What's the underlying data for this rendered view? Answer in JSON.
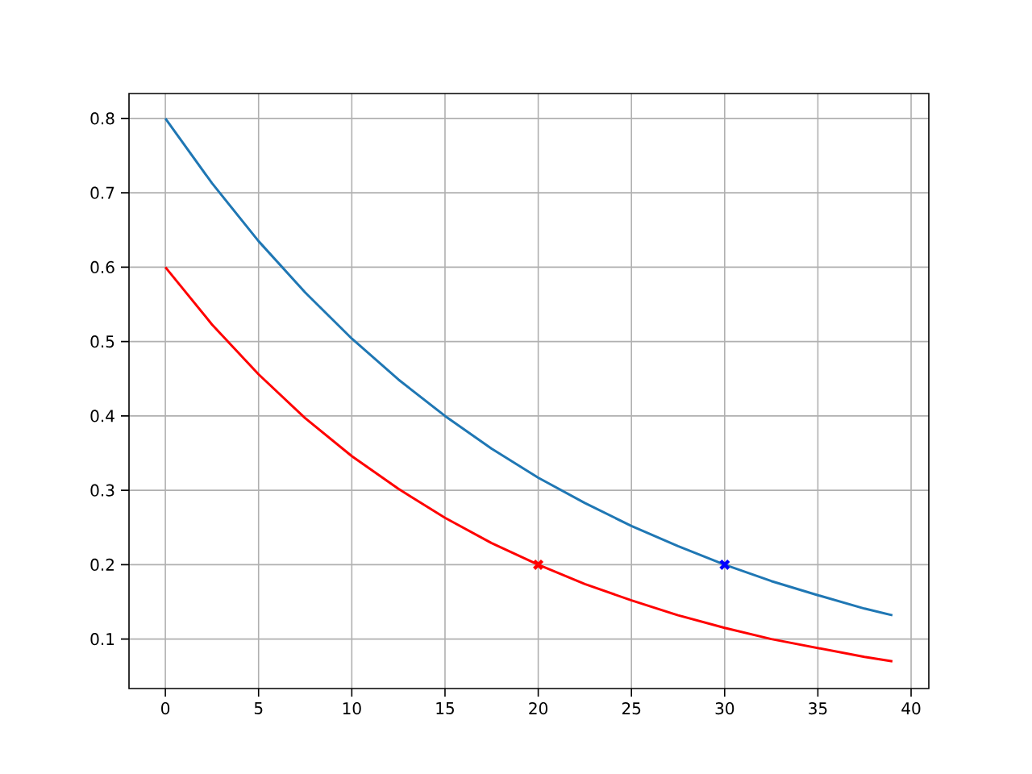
{
  "chart_data": {
    "type": "line",
    "x": [
      0,
      2.5,
      5,
      7.5,
      10,
      12.5,
      15,
      17.5,
      20,
      22.5,
      25,
      27.5,
      30,
      32.5,
      35,
      37.5,
      39
    ],
    "series": [
      {
        "color": "#1f77b4",
        "values": [
          0.8,
          0.713,
          0.635,
          0.566,
          0.504,
          0.449,
          0.4,
          0.356,
          0.317,
          0.283,
          0.252,
          0.225,
          0.2,
          0.178,
          0.159,
          0.141,
          0.132
        ]
      },
      {
        "color": "#ff0000",
        "values": [
          0.6,
          0.523,
          0.456,
          0.397,
          0.346,
          0.302,
          0.263,
          0.229,
          0.2,
          0.174,
          0.152,
          0.132,
          0.115,
          0.1,
          0.088,
          0.076,
          0.07
        ]
      },
      {
        "type": "scatter",
        "color": "#ff0000",
        "x": [
          20
        ],
        "values": [
          0.2
        ],
        "marker": "cross"
      },
      {
        "type": "scatter",
        "color": "#0000ff",
        "x": [
          30
        ],
        "values": [
          0.2
        ],
        "marker": "cross"
      }
    ],
    "xlim": [
      -1.95,
      40.95
    ],
    "ylim": [
      0.0335,
      0.8335
    ],
    "xticks": [
      0,
      5,
      10,
      15,
      20,
      25,
      30,
      35,
      40
    ],
    "yticks": [
      0.1,
      0.2,
      0.3,
      0.4,
      0.5,
      0.6,
      0.7,
      0.8
    ],
    "grid": true
  }
}
